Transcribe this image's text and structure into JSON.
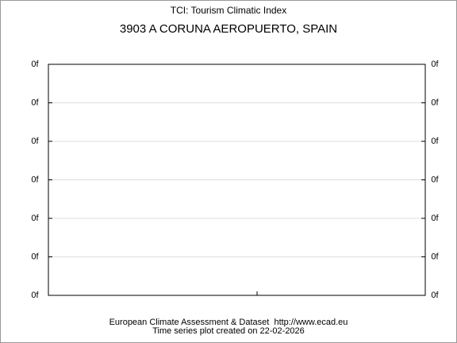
{
  "chart_data": {
    "type": "line",
    "title": "TCI: Tourism Climatic Index",
    "subtitle": "3903 A CORUNA AEROPUERTO, SPAIN",
    "series": [],
    "ylim": [
      0,
      6
    ],
    "yticks": [
      {
        "value": 0,
        "label": "0f"
      },
      {
        "value": 1,
        "label": "0f"
      },
      {
        "value": 2,
        "label": "0f"
      },
      {
        "value": 3,
        "label": "0f"
      },
      {
        "value": 4,
        "label": "0f"
      },
      {
        "value": 5,
        "label": "0f"
      },
      {
        "value": 6,
        "label": "0f"
      }
    ],
    "y2lim": [
      0,
      6
    ],
    "y2ticks": [
      {
        "value": 0,
        "label": "0f"
      },
      {
        "value": 1,
        "label": "0f"
      },
      {
        "value": 2,
        "label": "0f"
      },
      {
        "value": 3,
        "label": "0f"
      },
      {
        "value": 4,
        "label": "0f"
      },
      {
        "value": 5,
        "label": "0f"
      },
      {
        "value": 6,
        "label": "0f"
      }
    ],
    "grid": true,
    "footer": [
      "European Climate Assessment & Dataset  http://www.ecad.eu",
      "Time series plot created on 22-02-2026"
    ]
  }
}
